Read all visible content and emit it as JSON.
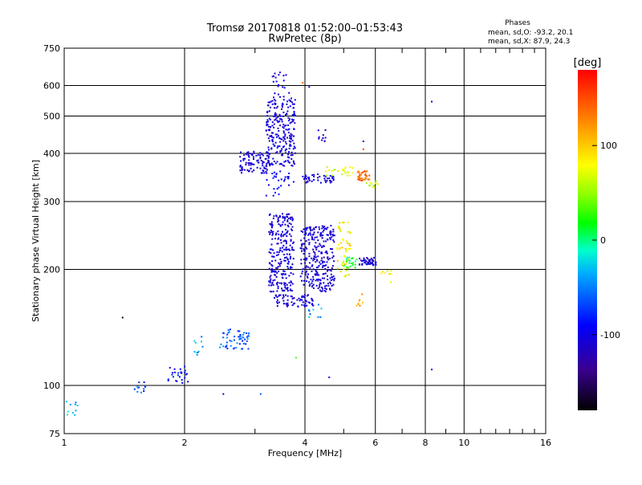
{
  "chart_data": {
    "type": "scatter",
    "title": "Tromsø 20170818 01:52:00–01:53:43",
    "subtitle": "RwPretec (8p)",
    "stats": {
      "heading": "Phases",
      "line1": "mean, sd,O: -93.2, 20.1",
      "line2": "mean, sd,X:  87.9, 24.3"
    },
    "xlabel": "Frequency [MHz]",
    "ylabel": "Stationary phase Virtual Height [km]",
    "x_scale": "log",
    "y_scale": "log",
    "xlim": [
      1,
      16
    ],
    "ylim": [
      75,
      750
    ],
    "grid": true,
    "x_tick_labels": [
      {
        "v": 1,
        "t": "1"
      },
      {
        "v": 2,
        "t": "2"
      },
      {
        "v": 4,
        "t": "4"
      },
      {
        "v": 6,
        "t": "6"
      },
      {
        "v": 8,
        "t": "8"
      },
      {
        "v": 10,
        "t": "10"
      },
      {
        "v": 16,
        "t": "16"
      }
    ],
    "x_major_grid": [
      2,
      4,
      6,
      8,
      10
    ],
    "x_minor_ticks": [
      3,
      5,
      7,
      9,
      11,
      12,
      13,
      14,
      15
    ],
    "y_tick_labels": [
      {
        "v": 75,
        "t": "75"
      },
      {
        "v": 100,
        "t": "100"
      },
      {
        "v": 200,
        "t": "200"
      },
      {
        "v": 300,
        "t": "300"
      },
      {
        "v": 400,
        "t": "400"
      },
      {
        "v": 500,
        "t": "500"
      },
      {
        "v": 600,
        "t": "600"
      },
      {
        "v": 750,
        "t": "750"
      }
    ],
    "y_major_grid": [
      100,
      200,
      300,
      400,
      500,
      600
    ],
    "colorbar": {
      "label": "[deg]",
      "range": [
        -180,
        180
      ],
      "ticks": [
        {
          "v": 100,
          "t": "100"
        },
        {
          "v": 0,
          "t": "0"
        },
        {
          "v": -100,
          "t": "-100"
        }
      ]
    },
    "clusters": [
      {
        "x": [
          1.0,
          1.08
        ],
        "y": [
          82,
          92
        ],
        "phase": [
          -60,
          -10
        ],
        "n": 10
      },
      {
        "x": [
          1.5,
          1.6
        ],
        "y": [
          95,
          105
        ],
        "phase": [
          -100,
          -20
        ],
        "n": 12
      },
      {
        "x": [
          1.82,
          2.05
        ],
        "y": [
          100,
          112
        ],
        "phase": [
          -110,
          -70
        ],
        "n": 26
      },
      {
        "x": [
          2.1,
          2.25
        ],
        "y": [
          120,
          140
        ],
        "phase": [
          -80,
          -20
        ],
        "n": 10
      },
      {
        "x": [
          2.45,
          2.9
        ],
        "y": [
          124,
          140
        ],
        "phase": [
          -90,
          -40
        ],
        "n": 55
      },
      {
        "x": [
          2.75,
          3.25
        ],
        "y": [
          355,
          405
        ],
        "phase": [
          -120,
          -90
        ],
        "n": 90
      },
      {
        "x": [
          3.2,
          3.8
        ],
        "y": [
          370,
          560
        ],
        "phase": [
          -120,
          -90
        ],
        "n": 240
      },
      {
        "x": [
          3.3,
          3.65
        ],
        "y": [
          560,
          650
        ],
        "phase": [
          -120,
          -90
        ],
        "n": 20
      },
      {
        "x": [
          3.2,
          3.75
        ],
        "y": [
          310,
          360
        ],
        "phase": [
          -110,
          -80
        ],
        "n": 30
      },
      {
        "x": [
          3.25,
          3.75
        ],
        "y": [
          175,
          280
        ],
        "phase": [
          -120,
          -95
        ],
        "n": 250
      },
      {
        "x": [
          3.35,
          4.2
        ],
        "y": [
          160,
          172
        ],
        "phase": [
          -120,
          -95
        ],
        "n": 70
      },
      {
        "x": [
          3.9,
          4.75
        ],
        "y": [
          175,
          260
        ],
        "phase": [
          -120,
          -95
        ],
        "n": 280
      },
      {
        "x": [
          3.95,
          4.75
        ],
        "y": [
          335,
          355
        ],
        "phase": [
          -120,
          -95
        ],
        "n": 45
      },
      {
        "x": [
          4.3,
          4.55
        ],
        "y": [
          430,
          460
        ],
        "phase": [
          -120,
          -95
        ],
        "n": 10
      },
      {
        "x": [
          4.8,
          5.2
        ],
        "y": [
          190,
          265
        ],
        "phase": [
          60,
          110
        ],
        "n": 55
      },
      {
        "x": [
          5.0,
          5.4
        ],
        "y": [
          200,
          215
        ],
        "phase": [
          -20,
          40
        ],
        "n": 20
      },
      {
        "x": [
          5.45,
          6.05
        ],
        "y": [
          205,
          215
        ],
        "phase": [
          -120,
          -95
        ],
        "n": 45
      },
      {
        "x": [
          5.4,
          5.8
        ],
        "y": [
          340,
          360
        ],
        "phase": [
          120,
          160
        ],
        "n": 35
      },
      {
        "x": [
          4.5,
          5.3
        ],
        "y": [
          350,
          370
        ],
        "phase": [
          50,
          90
        ],
        "n": 25
      },
      {
        "x": [
          5.7,
          6.1
        ],
        "y": [
          325,
          340
        ],
        "phase": [
          40,
          90
        ],
        "n": 12
      },
      {
        "x": [
          5.35,
          5.65
        ],
        "y": [
          160,
          175
        ],
        "phase": [
          100,
          130
        ],
        "n": 8
      },
      {
        "x": [
          6.2,
          6.6
        ],
        "y": [
          185,
          200
        ],
        "phase": [
          60,
          100
        ],
        "n": 8
      },
      {
        "x": [
          4.0,
          4.4
        ],
        "y": [
          150,
          165
        ],
        "phase": [
          -60,
          -20
        ],
        "n": 10
      }
    ],
    "points": [
      {
        "x": 1.4,
        "y": 150,
        "phase": -170
      },
      {
        "x": 2.5,
        "y": 95,
        "phase": -100
      },
      {
        "x": 3.1,
        "y": 95,
        "phase": -60
      },
      {
        "x": 3.8,
        "y": 118,
        "phase": 30
      },
      {
        "x": 4.6,
        "y": 105,
        "phase": -100
      },
      {
        "x": 8.3,
        "y": 110,
        "phase": -100
      },
      {
        "x": 8.3,
        "y": 545,
        "phase": -100
      },
      {
        "x": 5.6,
        "y": 430,
        "phase": -120
      },
      {
        "x": 5.6,
        "y": 410,
        "phase": 150
      },
      {
        "x": 3.95,
        "y": 610,
        "phase": 140
      },
      {
        "x": 4.1,
        "y": 595,
        "phase": -130
      },
      {
        "x": 5.8,
        "y": 210,
        "phase": -150
      }
    ]
  }
}
